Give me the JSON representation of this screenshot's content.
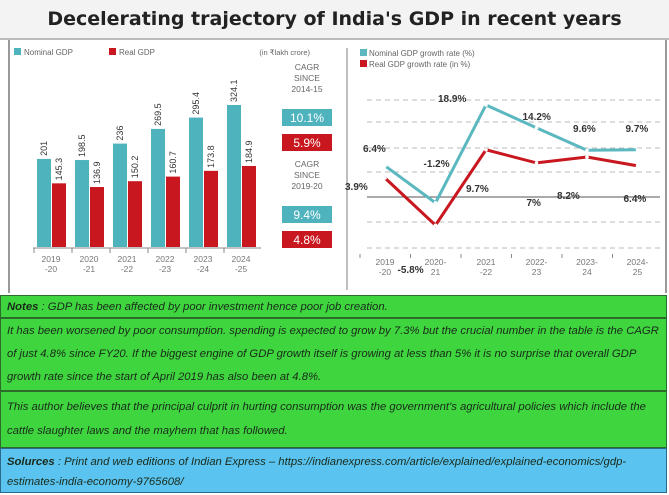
{
  "title": "Decelerating trajectory of India's GDP in recent years",
  "chart_data": [
    {
      "type": "bar",
      "title": "",
      "unit_label": "(in ₹lakh crore)",
      "categories": [
        [
          "2019",
          "-20"
        ],
        [
          "2020",
          "-21"
        ],
        [
          "2021",
          "-22"
        ],
        [
          "2022",
          "-23"
        ],
        [
          "2023",
          "-24"
        ],
        [
          "2024",
          "-25"
        ]
      ],
      "series": [
        {
          "name": "Nominal GDP",
          "color": "#4fb3be",
          "values": [
            201,
            198.5,
            236,
            269.5,
            295.4,
            324.1
          ]
        },
        {
          "name": "Real GDP",
          "color": "#c8171e",
          "values": [
            145.3,
            136.9,
            150.2,
            160.7,
            173.8,
            184.9
          ]
        }
      ],
      "ylim": [
        0,
        340
      ],
      "cagr": [
        {
          "label": [
            "CAGR",
            "SINCE",
            "2014-15"
          ],
          "nominal": "10.1%",
          "real": "5.9%"
        },
        {
          "label": [
            "CAGR",
            "SINCE",
            "2019-20"
          ],
          "nominal": "9.4%",
          "real": "4.8%"
        }
      ]
    },
    {
      "type": "line",
      "categories": [
        [
          "2019",
          "-20"
        ],
        [
          "2020-",
          "21"
        ],
        [
          "2021",
          "-22"
        ],
        [
          "2022-",
          "23"
        ],
        [
          "2023-",
          "24"
        ],
        [
          "2024-",
          "25"
        ]
      ],
      "series": [
        {
          "name": "Nominal GDP growth rate (%)",
          "color": "#5bb8c0",
          "values": [
            6.4,
            -1.2,
            18.9,
            14.2,
            9.6,
            9.7
          ],
          "labels": [
            "6.4%",
            "-1.2%",
            "18.9%",
            "14.2%",
            "9.6%",
            "9.7%"
          ]
        },
        {
          "name": "Real GDP growth rate (in %)",
          "color": "#c8171e",
          "values": [
            3.9,
            -5.8,
            9.7,
            7,
            8.2,
            6.4
          ],
          "labels": [
            "3.9%",
            "-5.8%",
            "9.7%",
            "7%",
            "8.2%",
            "6.4%"
          ]
        }
      ],
      "ylim": [
        -10,
        22
      ]
    }
  ],
  "notes": {
    "n1_label": "Notes",
    "n1": " : GDP has been affected by poor investment hence poor job creation.",
    "n2": "It has been worsened by poor consumption. spending is expected to grow by 7.3% but the crucial number in the table is the CAGR of just 4.8% since FY20. If the biggest engine of GDP growth itself is growing at less than 5% it is no surprise that overall GDP growth rate since the start of April 2019 has also been at 4.8%.",
    "n3": "This author believes that the principal culprit in hurting consumption was the government's agricultural policies which include the cattle slaughter laws and the mayhem that has followed.",
    "src_label": "Solurces",
    "src": " : Print and web editions of Indian Express – https://indianexpress.com/article/explained/explained-economics/gdp-estimates-india-economy-9765608/"
  }
}
